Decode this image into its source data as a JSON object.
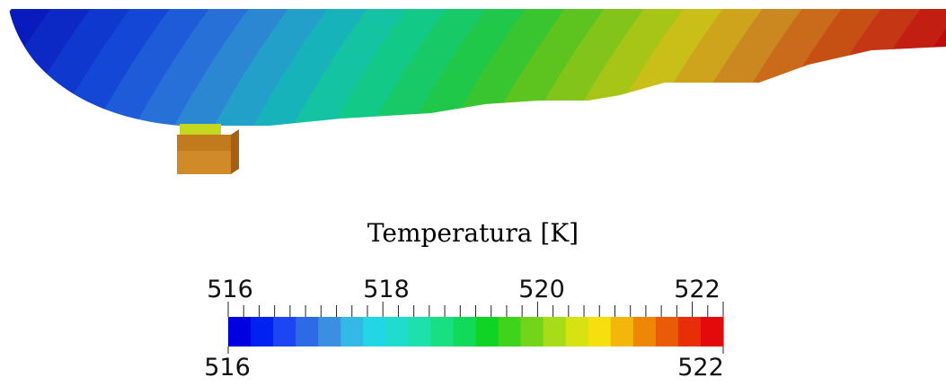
{
  "legend": {
    "title": "Temperatura [K]",
    "range": [
      516,
      522
    ],
    "top_labels": [
      "516",
      "518",
      "520",
      "522"
    ],
    "bottom_labels": [
      "516",
      "522"
    ],
    "colormap": [
      "#0000e0",
      "#0022f0",
      "#1b46f2",
      "#2f6ae6",
      "#3a8fe0",
      "#34b8e6",
      "#22d6e6",
      "#20dccc",
      "#1ee0ac",
      "#18df82",
      "#11d95a",
      "#0fd426",
      "#3fd31b",
      "#72d51a",
      "#a6dc18",
      "#d6e212",
      "#f5df0c",
      "#f2b70a",
      "#ee8606",
      "#ea5b08",
      "#e82e08",
      "#e20a0a"
    ]
  },
  "scene": {
    "plume_colors": [
      "#0a1bbd",
      "#0c29c6",
      "#0f38cf",
      "#1547d6",
      "#1d5bd9",
      "#2770d8",
      "#2c87d3",
      "#22a0c9",
      "#16b4ba",
      "#14c3a2",
      "#12c987",
      "#17c967",
      "#20c84a",
      "#38c52f",
      "#5cc31f",
      "#82c419",
      "#a7c516",
      "#c9bf18",
      "#cfa41d",
      "#cc8820",
      "#c96b1b",
      "#c64f14",
      "#c53614",
      "#c21f12",
      "#bd0c0c"
    ],
    "block_colors": [
      "#c27a1f",
      "#d08b28",
      "#a65f10"
    ]
  }
}
